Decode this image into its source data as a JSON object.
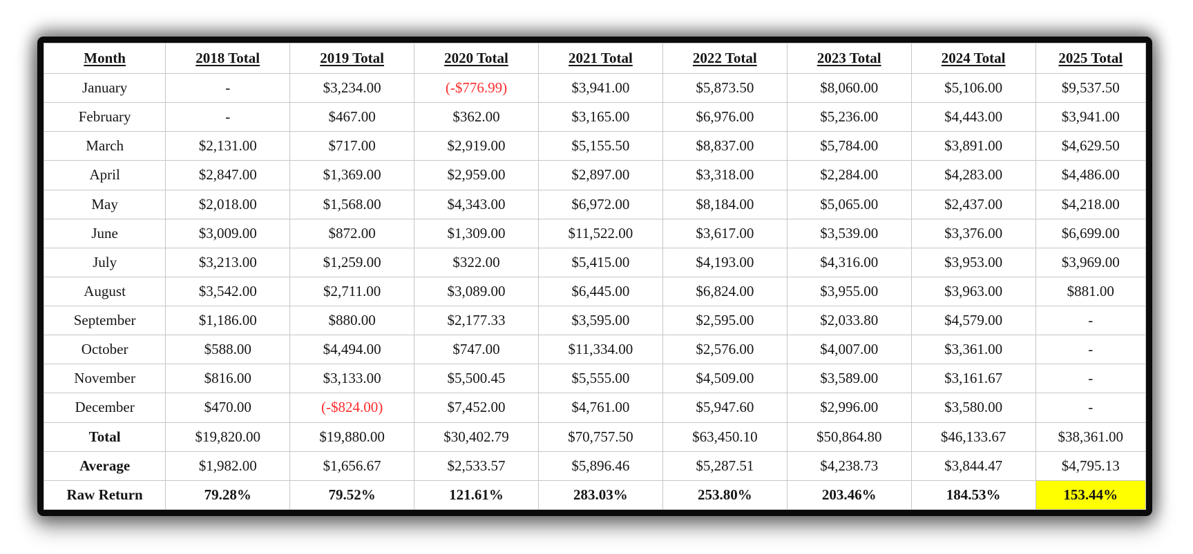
{
  "chart_data": {
    "type": "table",
    "columns": [
      "Month",
      "2018 Total",
      "2019 Total",
      "2020 Total",
      "2021 Total",
      "2022 Total",
      "2023 Total",
      "2024 Total",
      "2025 Total"
    ],
    "rows": [
      {
        "label": "January",
        "values": [
          "-",
          "$3,234.00",
          "(-$776.99)",
          "$3,941.00",
          "$5,873.50",
          "$8,060.00",
          "$5,106.00",
          "$9,537.50"
        ]
      },
      {
        "label": "February",
        "values": [
          "-",
          "$467.00",
          "$362.00",
          "$3,165.00",
          "$6,976.00",
          "$5,236.00",
          "$4,443.00",
          "$3,941.00"
        ]
      },
      {
        "label": "March",
        "values": [
          "$2,131.00",
          "$717.00",
          "$2,919.00",
          "$5,155.50",
          "$8,837.00",
          "$5,784.00",
          "$3,891.00",
          "$4,629.50"
        ]
      },
      {
        "label": "April",
        "values": [
          "$2,847.00",
          "$1,369.00",
          "$2,959.00",
          "$2,897.00",
          "$3,318.00",
          "$2,284.00",
          "$4,283.00",
          "$4,486.00"
        ]
      },
      {
        "label": "May",
        "values": [
          "$2,018.00",
          "$1,568.00",
          "$4,343.00",
          "$6,972.00",
          "$8,184.00",
          "$5,065.00",
          "$2,437.00",
          "$4,218.00"
        ]
      },
      {
        "label": "June",
        "values": [
          "$3,009.00",
          "$872.00",
          "$1,309.00",
          "$11,522.00",
          "$3,617.00",
          "$3,539.00",
          "$3,376.00",
          "$6,699.00"
        ]
      },
      {
        "label": "July",
        "values": [
          "$3,213.00",
          "$1,259.00",
          "$322.00",
          "$5,415.00",
          "$4,193.00",
          "$4,316.00",
          "$3,953.00",
          "$3,969.00"
        ]
      },
      {
        "label": "August",
        "values": [
          "$3,542.00",
          "$2,711.00",
          "$3,089.00",
          "$6,445.00",
          "$6,824.00",
          "$3,955.00",
          "$3,963.00",
          "$881.00"
        ]
      },
      {
        "label": "September",
        "values": [
          "$1,186.00",
          "$880.00",
          "$2,177.33",
          "$3,595.00",
          "$2,595.00",
          "$2,033.80",
          "$4,579.00",
          "-"
        ]
      },
      {
        "label": "October",
        "values": [
          "$588.00",
          "$4,494.00",
          "$747.00",
          "$11,334.00",
          "$2,576.00",
          "$4,007.00",
          "$3,361.00",
          "-"
        ]
      },
      {
        "label": "November",
        "values": [
          "$816.00",
          "$3,133.00",
          "$5,500.45",
          "$5,555.00",
          "$4,509.00",
          "$3,589.00",
          "$3,161.67",
          "-"
        ]
      },
      {
        "label": "December",
        "values": [
          "$470.00",
          "(-$824.00)",
          "$7,452.00",
          "$4,761.00",
          "$5,947.60",
          "$2,996.00",
          "$3,580.00",
          "-"
        ]
      },
      {
        "label": "Total",
        "bold_label": true,
        "values": [
          "$19,820.00",
          "$19,880.00",
          "$30,402.79",
          "$70,757.50",
          "$63,450.10",
          "$50,864.80",
          "$46,133.67",
          "$38,361.00"
        ]
      },
      {
        "label": "Average",
        "bold_label": true,
        "values": [
          "$1,982.00",
          "$1,656.67",
          "$2,533.57",
          "$5,896.46",
          "$5,287.51",
          "$4,238.73",
          "$3,844.47",
          "$4,795.13"
        ]
      },
      {
        "label": "Raw Return",
        "bold_label": true,
        "bold_values": true,
        "values": [
          "79.28%",
          "79.52%",
          "121.61%",
          "283.03%",
          "253.80%",
          "203.46%",
          "184.53%",
          "153.44%"
        ]
      }
    ],
    "highlight": {
      "row": "Raw Return",
      "column": "2025 Total",
      "bg": "#ffff00"
    },
    "negative_color": "#fe2c2c",
    "layout_hints": {
      "grid": true,
      "header_underlined": true,
      "frame": "thick black border with drop shadow"
    }
  },
  "colors": {
    "text": "#151515",
    "grid_line": "#c6c6c6",
    "frame_border": "#0b0b0b",
    "negative_text": "#fe2c2c",
    "highlight_bg": "#ffff00",
    "background": "#ffffff"
  }
}
